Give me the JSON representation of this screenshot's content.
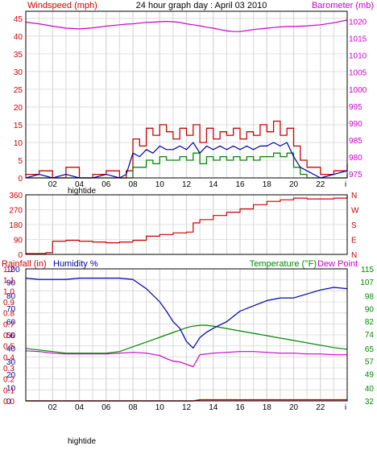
{
  "title": "24 hour graph day : April 03 2010",
  "colors": {
    "wind": "#cc0000",
    "wind_avg": "#008800",
    "baro": "#cc00cc",
    "dir": "#cc0000",
    "rain": "#cc0000",
    "humidity": "#0000aa",
    "temperature": "#008800",
    "dewpoint": "#cc00cc",
    "grid": "#d8d8d8",
    "frame": "#000000",
    "text": "#000000"
  },
  "x_ticks": [
    "02",
    "04",
    "06",
    "08",
    "10",
    "12",
    "14",
    "16",
    "18",
    "20",
    "22"
  ],
  "x_sublabel": "hightide",
  "x_end_label": "i",
  "chart_data": [
    {
      "type": "line",
      "name": "wind-barometer",
      "left_label": "Windspeed (mph)",
      "right_label": "Barometer (mb)",
      "left_ticks": [
        "0",
        "5",
        "10",
        "15",
        "20",
        "25",
        "30",
        "35",
        "40",
        "45"
      ],
      "right_ticks": [
        "975",
        "980",
        "985",
        "990",
        "995",
        "1000",
        "1005",
        "1010",
        "1015",
        "1020"
      ],
      "ylim_left": [
        0,
        47
      ],
      "ylim_right": [
        973.8,
        1023
      ],
      "xlim": [
        0,
        24
      ],
      "x": [
        0,
        1,
        2,
        3,
        4,
        5,
        6,
        7,
        7.5,
        8,
        8.5,
        9,
        9.5,
        10,
        10.5,
        11,
        11.5,
        12,
        12.5,
        13,
        13.5,
        14,
        14.5,
        15,
        15.5,
        16,
        16.5,
        17,
        17.5,
        18,
        18.5,
        19,
        19.5,
        20,
        20.5,
        21,
        22,
        23,
        24
      ],
      "series": [
        {
          "name": "gust",
          "role": "wind_gust",
          "values": [
            1,
            2,
            0,
            3,
            0,
            1,
            2,
            0,
            2,
            11,
            9,
            14,
            12,
            15,
            13,
            11,
            14,
            12,
            15,
            10,
            14,
            11,
            13,
            12,
            14,
            11,
            13,
            12,
            15,
            13,
            16,
            12,
            14,
            9,
            5,
            3,
            1,
            2,
            4
          ]
        },
        {
          "name": "average",
          "role": "wind_avg",
          "values": [
            0,
            1,
            0,
            1,
            0,
            0,
            1,
            0,
            1,
            7,
            6,
            8,
            7,
            9,
            8,
            8,
            9,
            8,
            10,
            7,
            9,
            8,
            9,
            8,
            9,
            8,
            9,
            8,
            9,
            9,
            10,
            9,
            10,
            6,
            3,
            2,
            0,
            1,
            2
          ]
        },
        {
          "name": "low",
          "role": "wind_low",
          "values": [
            0,
            0,
            0,
            0,
            0,
            0,
            0,
            0,
            0,
            3,
            3,
            5,
            4,
            6,
            5,
            5,
            6,
            5,
            7,
            4,
            6,
            5,
            6,
            5,
            6,
            5,
            6,
            5,
            6,
            6,
            7,
            6,
            7,
            3,
            1,
            0,
            0,
            0,
            1
          ]
        },
        {
          "name": "barometer",
          "role": "baro",
          "axis": "right",
          "values": [
            1019.8,
            1019.3,
            1018.6,
            1018.0,
            1017.8,
            1018.1,
            1018.6,
            1019.0,
            1019.2,
            1019.3,
            1019.5,
            1019.7,
            1019.8,
            1019.9,
            1020.0,
            1019.9,
            1019.7,
            1019.3,
            1019.0,
            1018.7,
            1018.3,
            1018.0,
            1017.6,
            1017.2,
            1017.0,
            1017.0,
            1017.3,
            1017.6,
            1017.8,
            1018.0,
            1018.2,
            1018.4,
            1018.5,
            1018.5,
            1018.6,
            1018.7,
            1019.0,
            1019.6,
            1020.4
          ]
        }
      ]
    },
    {
      "type": "line",
      "name": "wind-direction",
      "left_ticks": [
        "0",
        "90",
        "180",
        "270",
        "360"
      ],
      "right_ticks": [
        "N",
        "E",
        "S",
        "W",
        "N"
      ],
      "ylim": [
        0,
        360
      ],
      "xlim": [
        0,
        24
      ],
      "x": [
        0,
        1.5,
        2,
        3,
        4,
        5,
        6,
        7,
        8,
        9,
        10,
        11,
        12,
        12.5,
        13,
        14,
        15,
        16,
        17,
        18,
        19,
        20,
        21,
        22,
        23,
        24
      ],
      "series": [
        {
          "name": "direction",
          "role": "dir",
          "values": [
            5,
            10,
            80,
            85,
            80,
            75,
            70,
            75,
            85,
            110,
            120,
            130,
            135,
            190,
            210,
            235,
            255,
            275,
            300,
            320,
            330,
            340,
            335,
            335,
            340,
            355
          ]
        }
      ]
    },
    {
      "type": "line",
      "name": "rain-humidity-temperature",
      "left_label": "Rainfall (in)",
      "left_label_2": "Humidity %",
      "right_label": "Temperature (°F)",
      "right_label_2": "Dew Point",
      "left_ticks": [
        "0",
        "10",
        "20",
        "30",
        "40",
        "50",
        "60",
        "70",
        "80",
        "90",
        "100"
      ],
      "rain_ticks": [
        "0.0",
        "0.1",
        "0.2",
        "0.3",
        "0.4",
        "0.5",
        "0.6",
        "0.7",
        "0.8",
        "0.9",
        "1.0",
        "1.1",
        "1.2"
      ],
      "right_ticks": [
        "32",
        "40",
        "49",
        "57",
        "65",
        "74",
        "82",
        "90",
        "98",
        "107",
        "115"
      ],
      "ylim_left": [
        0,
        100
      ],
      "ylim_rain": [
        0,
        1.2
      ],
      "ylim_right": [
        32,
        115
      ],
      "xlim": [
        0,
        24
      ],
      "x": [
        0,
        1,
        2,
        3,
        4,
        5,
        6,
        7,
        8,
        9,
        10,
        10.5,
        11,
        11.5,
        12,
        12.5,
        13,
        13.5,
        14,
        15,
        16,
        17,
        18,
        19,
        20,
        21,
        22,
        23,
        24
      ],
      "series": [
        {
          "name": "Humidity %",
          "role": "humidity",
          "values": [
            93,
            92,
            92,
            92,
            93,
            93,
            93,
            93,
            92,
            85,
            75,
            68,
            60,
            55,
            45,
            40,
            48,
            52,
            55,
            60,
            68,
            72,
            76,
            78,
            78,
            81,
            84,
            86,
            85
          ]
        },
        {
          "name": "Temperature",
          "role": "temperature",
          "axis": "right",
          "values": [
            65,
            64,
            63,
            62,
            62,
            62,
            62,
            63,
            66,
            69,
            72,
            73.5,
            75,
            76.5,
            78,
            79,
            79.5,
            79.5,
            79,
            77.5,
            76,
            74.5,
            73,
            71.5,
            70,
            68.5,
            67,
            65.5,
            64.5
          ]
        },
        {
          "name": "Dew Point",
          "role": "dewpoint",
          "axis": "right",
          "values": [
            63.5,
            63,
            62,
            61.5,
            61.5,
            61.5,
            61.5,
            62,
            62.5,
            62,
            60.5,
            58.5,
            57,
            56.5,
            55,
            53.5,
            61,
            61.5,
            62,
            62.5,
            63,
            63,
            62.5,
            62,
            62,
            61.5,
            61.5,
            61,
            61
          ]
        },
        {
          "name": "Rainfall",
          "role": "rain",
          "axis": "rain",
          "values": [
            0,
            0,
            0,
            0,
            0,
            0,
            0,
            0,
            0,
            0,
            0,
            0,
            0,
            0,
            0,
            0,
            0.01,
            0.01,
            0.01,
            0.01,
            0.01,
            0.01,
            0.01,
            0.01,
            0.01,
            0.01,
            0.01,
            0.01,
            0.01
          ]
        }
      ]
    }
  ]
}
